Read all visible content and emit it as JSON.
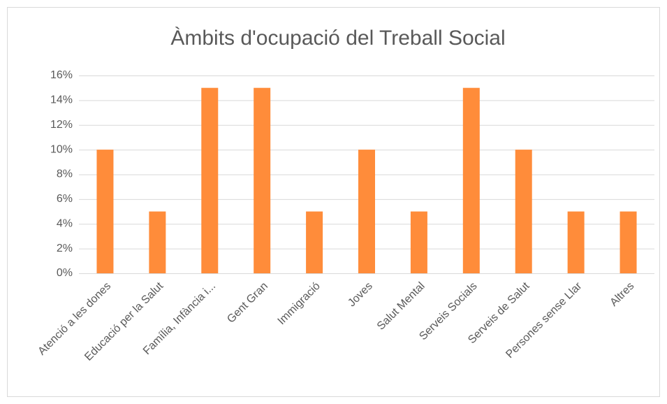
{
  "chart_data": {
    "type": "bar",
    "title": "Àmbits d'ocupació del Treball Social",
    "categories": [
      "Atenció a les dones",
      "Educació per la Salut",
      "Família, Infància i...",
      "Gent Gran",
      "Immigració",
      "Joves",
      "Salut Mental",
      "Serveis Socials",
      "Serveis de Salut",
      "Persones sense Llar",
      "Altres"
    ],
    "values": [
      10,
      5,
      15,
      15,
      5,
      10,
      5,
      15,
      10,
      5,
      5
    ],
    "color": "#ff8c3a",
    "ylim": [
      0,
      16
    ],
    "yticks": [
      {
        "value": 0,
        "label": "0%"
      },
      {
        "value": 2,
        "label": "2%"
      },
      {
        "value": 4,
        "label": "4%"
      },
      {
        "value": 6,
        "label": "6%"
      },
      {
        "value": 8,
        "label": "8%"
      },
      {
        "value": 10,
        "label": "10%"
      },
      {
        "value": 12,
        "label": "12%"
      },
      {
        "value": 14,
        "label": "14%"
      },
      {
        "value": 16,
        "label": "16%"
      }
    ],
    "grid": true
  }
}
